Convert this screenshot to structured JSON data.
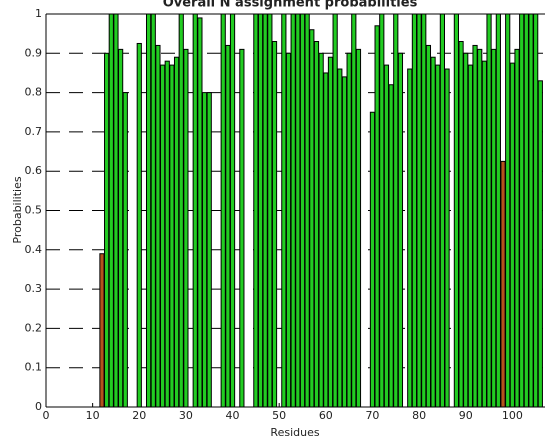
{
  "chart_data": {
    "type": "bar",
    "title": "Overall N assignment probabilities",
    "xlabel": "Residues",
    "ylabel": "Probabilities",
    "x": [
      12,
      13,
      14,
      15,
      16,
      17,
      20,
      22,
      23,
      24,
      25,
      26,
      27,
      28,
      29,
      30,
      32,
      33,
      34,
      35,
      38,
      39,
      40,
      42,
      45,
      46,
      47,
      48,
      49,
      51,
      52,
      53,
      54,
      55,
      56,
      57,
      58,
      59,
      60,
      61,
      62,
      63,
      64,
      65,
      66,
      67,
      70,
      71,
      72,
      73,
      74,
      75,
      76,
      78,
      79,
      80,
      81,
      82,
      83,
      84,
      85,
      86,
      88,
      89,
      90,
      91,
      92,
      93,
      94,
      95,
      96,
      97,
      98,
      99,
      100,
      101,
      102,
      103,
      104,
      105,
      106
    ],
    "values": [
      0.39,
      0.9,
      1,
      1,
      0.91,
      0.8,
      0.925,
      1,
      1,
      0.92,
      0.87,
      0.88,
      0.87,
      0.89,
      1,
      0.91,
      1,
      0.99,
      0.8,
      0.8,
      1,
      0.92,
      1,
      0.91,
      1,
      1,
      1,
      1,
      0.93,
      1,
      0.9,
      1,
      1,
      1,
      1,
      0.96,
      0.93,
      0.9,
      0.85,
      0.89,
      1,
      0.86,
      0.84,
      0.9,
      1,
      0.91,
      0.75,
      0.97,
      1,
      0.87,
      0.82,
      1,
      0.9,
      0.86,
      1,
      1,
      1,
      0.92,
      0.89,
      0.87,
      1,
      0.86,
      1,
      0.93,
      0.9,
      0.87,
      0.92,
      0.91,
      0.88,
      1,
      0.91,
      1,
      0.625,
      1,
      0.875,
      0.91,
      1,
      1,
      1,
      1,
      0.83
    ],
    "colors": [
      "#b5531c",
      "#22cc22",
      "#22cc22",
      "#22cc22",
      "#22cc22",
      "#22cc22",
      "#22cc22",
      "#22cc22",
      "#22cc22",
      "#22cc22",
      "#22cc22",
      "#22cc22",
      "#22cc22",
      "#22cc22",
      "#22cc22",
      "#22cc22",
      "#22cc22",
      "#22cc22",
      "#22cc22",
      "#22cc22",
      "#22cc22",
      "#22cc22",
      "#22cc22",
      "#22cc22",
      "#22cc22",
      "#22cc22",
      "#22cc22",
      "#22cc22",
      "#22cc22",
      "#22cc22",
      "#22cc22",
      "#22cc22",
      "#22cc22",
      "#22cc22",
      "#22cc22",
      "#22cc22",
      "#22cc22",
      "#22cc22",
      "#22cc22",
      "#22cc22",
      "#22cc22",
      "#22cc22",
      "#22cc22",
      "#22cc22",
      "#22cc22",
      "#22cc22",
      "#22cc22",
      "#22cc22",
      "#22cc22",
      "#22cc22",
      "#22cc22",
      "#22cc22",
      "#22cc22",
      "#22cc22",
      "#22cc22",
      "#22cc22",
      "#22cc22",
      "#22cc22",
      "#22cc22",
      "#22cc22",
      "#22cc22",
      "#22cc22",
      "#22cc22",
      "#22cc22",
      "#22cc22",
      "#22cc22",
      "#22cc22",
      "#22cc22",
      "#22cc22",
      "#22cc22",
      "#22cc22",
      "#22cc22",
      "#b5531c",
      "#22cc22",
      "#22cc22",
      "#22cc22",
      "#22cc22",
      "#22cc22",
      "#22cc22",
      "#22cc22",
      "#22cc22"
    ],
    "xlim": [
      0,
      107
    ],
    "xticks": [
      0,
      10,
      20,
      30,
      40,
      50,
      60,
      70,
      80,
      90,
      100
    ],
    "ylim": [
      0,
      1
    ],
    "yticks": [
      0,
      0.1,
      0.2,
      0.3,
      0.4,
      0.5,
      0.6,
      0.7,
      0.8,
      0.9,
      1
    ],
    "grid": true
  }
}
